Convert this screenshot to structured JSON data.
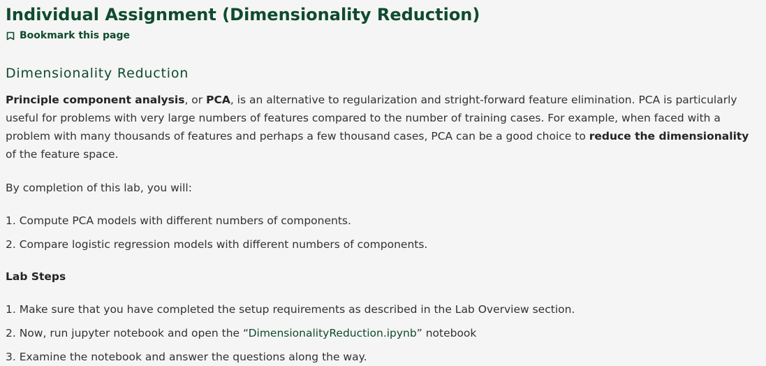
{
  "page": {
    "title": "Individual Assignment (Dimensionality Reduction)",
    "bookmark_label": "Bookmark this page"
  },
  "section": {
    "heading": "Dimensionality Reduction",
    "intro": {
      "term_1": "Principle component analysis",
      "text_1": ", or ",
      "term_2": "PCA",
      "text_2": ", is an alternative to regularization and stright-forward feature elimination. PCA is particularly useful for problems with very large numbers of features compared to the number of training cases. For example, when faced with a problem with many thousands of features and perhaps a few thousand cases, PCA can be a good choice to ",
      "term_3": "reduce the dimensionality",
      "text_3": " of the feature space."
    },
    "goals_intro": "By completion of this lab, you will:",
    "goals": [
      "1. Compute PCA models with different numbers of components.",
      "2. Compare logistic regression models with different numbers of components."
    ],
    "lab_steps_heading": "Lab Steps",
    "steps": {
      "step_1": "1. Make sure that you have completed the setup requirements as described in the Lab Overview section.",
      "step_2_prefix": "2. Now, run jupyter notebook and open the “",
      "step_2_file": "DimensionalityReduction.ipynb",
      "step_2_suffix": "” notebook",
      "step_3": "3. Examine the notebook and answer the questions along the way."
    }
  },
  "icons": {
    "bookmark": "bookmark-outline-icon"
  },
  "colors": {
    "background": "#f5f5f5",
    "heading": "#0f4b2e",
    "body_text": "#313131"
  }
}
